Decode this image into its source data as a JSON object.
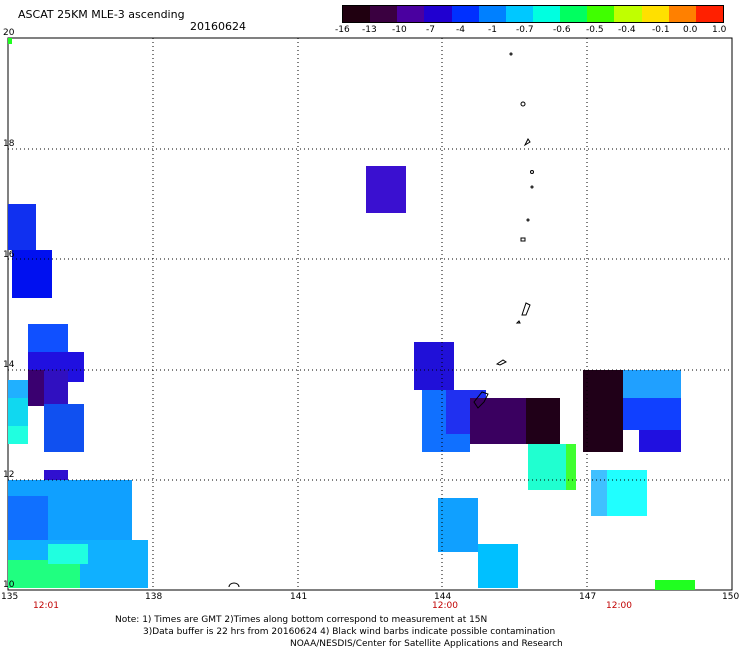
{
  "header": {
    "title": "ASCAT 25KM MLE-3 ascending",
    "date": "20160624"
  },
  "colorbar": {
    "labels": [
      "-16",
      "-13",
      "-10",
      "-7",
      "-4",
      "-1",
      "-0.7",
      "-0.6",
      "-0.5",
      "-0.4",
      "-0.1",
      "0.0",
      "1.0"
    ],
    "colors": [
      "#200010",
      "#3a0040",
      "#4a00a0",
      "#2000d0",
      "#0030ff",
      "#0080ff",
      "#00c8ff",
      "#00ffe0",
      "#00ff60",
      "#40ff00",
      "#c0ff00",
      "#ffe000",
      "#ff8000",
      "#ff2000"
    ]
  },
  "axes": {
    "lon_labels": [
      "135",
      "138",
      "141",
      "144",
      "147",
      "150"
    ],
    "lat_labels": [
      "10",
      "12",
      "14",
      "16",
      "18",
      "20"
    ],
    "time_labels": [
      "12:01",
      "12:00",
      "12:00"
    ]
  },
  "notes": {
    "line1": "Note: 1) Times are GMT 2)Times along bottom correspond to measurement at 15N",
    "line2": "3)Data buffer is 22 hrs from 20160624 4) Black wind barbs indicate possible contamination",
    "line3": "NOAA/NESDIS/Center for Satellite Applications and Research"
  }
}
